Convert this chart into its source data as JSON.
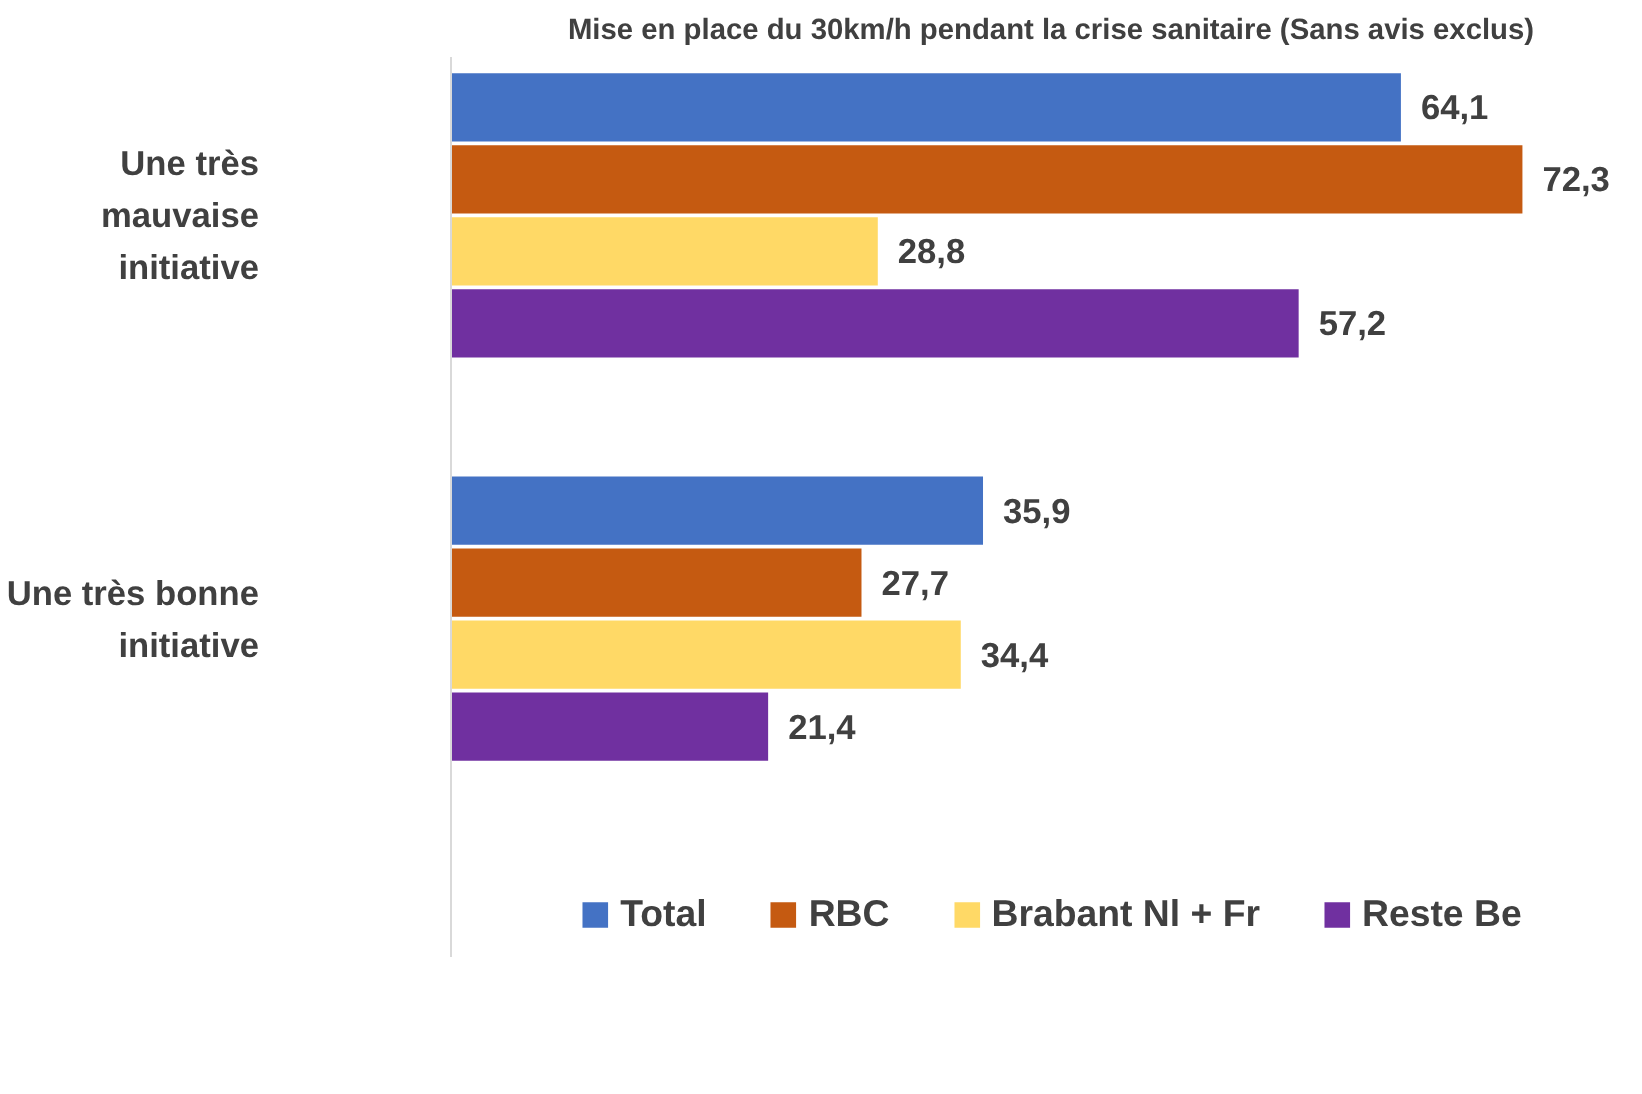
{
  "chart_data": {
    "type": "bar",
    "orientation": "horizontal",
    "title": "Mise en place du 30km/h pendant la crise sanitaire (Sans avis exclus)",
    "categories": [
      "Une très mauvaise initiative",
      "Une très bonne initiative"
    ],
    "series": [
      {
        "name": "Total",
        "color": "#4472c4",
        "values": [
          64.1,
          35.9
        ],
        "value_labels": [
          "64,1",
          "35,9"
        ]
      },
      {
        "name": "RBC",
        "color": "#c55a11",
        "values": [
          72.3,
          27.7
        ],
        "value_labels": [
          "72,3",
          "27,7"
        ]
      },
      {
        "name": "Brabant Nl + Fr",
        "color": "#ffd966",
        "values": [
          28.8,
          34.4
        ],
        "value_labels": [
          "28,8",
          "34,4"
        ]
      },
      {
        "name": "Reste Be",
        "color": "#7030a0",
        "values": [
          57.2,
          21.4
        ],
        "value_labels": [
          "57,2",
          "21,4"
        ]
      }
    ],
    "grid": false,
    "legend": "bottom"
  }
}
